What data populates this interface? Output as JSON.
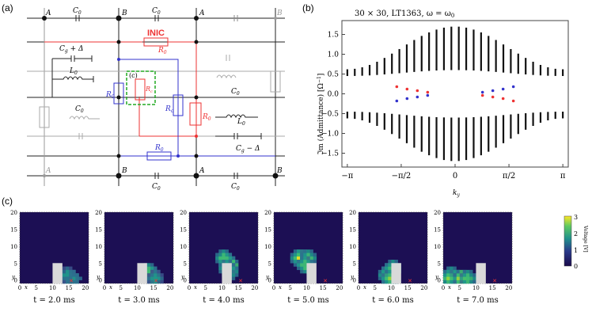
{
  "panel_a": {
    "label": "(a)",
    "node_A": "A",
    "node_B": "B",
    "cap_label": "C",
    "cap_sub": "0",
    "inductor_label": "L",
    "inductor_sub": "0",
    "res_label": "R",
    "res_sub": "0",
    "rc_label": "R",
    "rc_sub": "c",
    "inic_label": "INIC",
    "inset_label": "(c)",
    "cg_plus": "C",
    "cg_plus_sub": "g",
    "cg_plus_tail": " + Δ",
    "cg_minus": "C",
    "cg_minus_sub": "g",
    "cg_minus_tail": " − Δ"
  },
  "panel_b": {
    "label": "(b)",
    "title": "30 × 30, LT1363, ω = ω",
    "title_sub": "0",
    "ylabel": "ℑm (Admittance) [Ω",
    "ylabel_sup": "−1",
    "ylabel_end": "]",
    "xlabel": "k",
    "xlabel_sub": "y",
    "yticks": [
      "1.5",
      "1.0",
      "0.5",
      "0.0",
      "−0.5",
      "−1.0",
      "−1.5"
    ],
    "xticks": [
      "−π",
      "−π/2",
      "0",
      "π/2",
      "π"
    ]
  },
  "panel_c": {
    "label": "(c)",
    "colorbar_title": "Voltage [V]",
    "colorbar_ticks": [
      "3",
      "2",
      "1",
      "0"
    ],
    "yticks": [
      "20",
      "15",
      "10",
      "5",
      "0"
    ],
    "xticks": [
      "0",
      "5",
      "10",
      "15",
      "20"
    ],
    "x_axis": "x",
    "y_axis": "y",
    "frames": [
      {
        "time": "t = 2.0 ms"
      },
      {
        "time": "t = 3.0 ms"
      },
      {
        "time": "t = 4.0 ms"
      },
      {
        "time": "t = 5.0 ms"
      },
      {
        "time": "t = 6.0 ms"
      },
      {
        "time": "t = 7.0 ms"
      }
    ]
  },
  "chart_data": {
    "type": "scatter",
    "title": "30 × 30, LT1363, ω = ω0",
    "xlabel": "k_y",
    "ylabel": "ℑm (Admittance) [Ω^−1]",
    "xlim": [
      -3.3,
      3.3
    ],
    "ylim": [
      -1.85,
      1.85
    ],
    "bulk_max": 1.7,
    "bulk_min_edge": 0.45,
    "edge_red": [
      [
        -1.7,
        0.18
      ],
      [
        -1.4,
        0.12
      ],
      [
        -1.1,
        0.08
      ],
      [
        -0.8,
        0.04
      ],
      [
        0.8,
        -0.04
      ],
      [
        1.1,
        -0.08
      ],
      [
        1.4,
        -0.12
      ],
      [
        1.7,
        -0.18
      ]
    ],
    "edge_blue": [
      [
        -1.7,
        -0.18
      ],
      [
        -1.4,
        -0.12
      ],
      [
        -1.1,
        -0.08
      ],
      [
        -0.8,
        -0.04
      ],
      [
        0.8,
        0.04
      ],
      [
        1.1,
        0.08
      ],
      [
        1.4,
        0.12
      ],
      [
        1.7,
        0.18
      ]
    ]
  }
}
